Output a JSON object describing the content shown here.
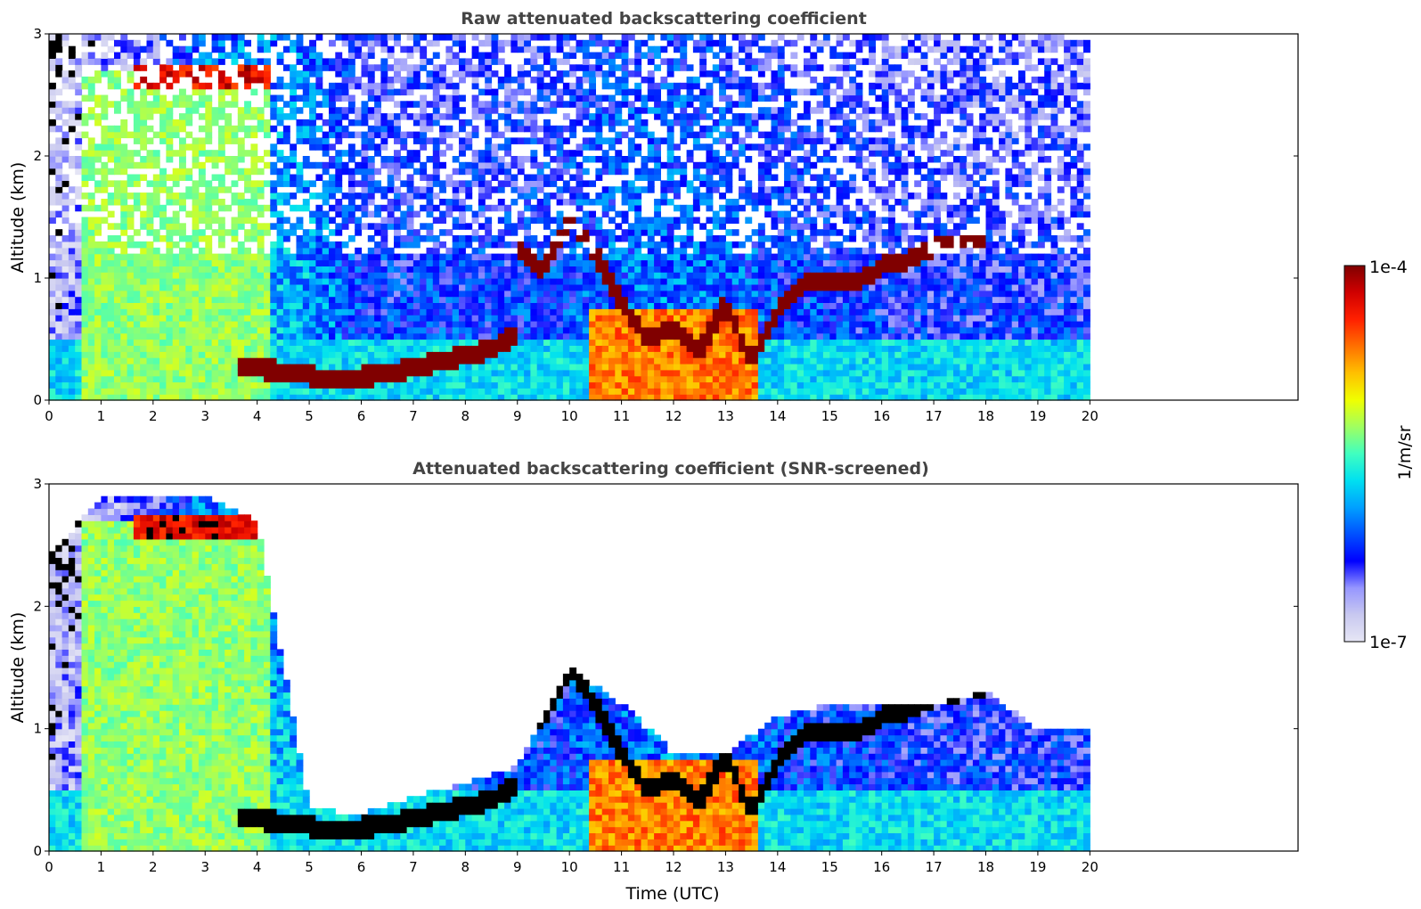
{
  "chart_data": [
    {
      "type": "heatmap",
      "title": "Raw attenuated backscattering coefficient",
      "xlabel": "",
      "ylabel": "Altitude (km)",
      "xlim": [
        0,
        24
      ],
      "ylim": [
        0,
        3
      ],
      "x_ticks": [
        "0",
        "1",
        "2",
        "3",
        "4",
        "5",
        "6",
        "7",
        "8",
        "9",
        "10",
        "11",
        "12",
        "13",
        "14",
        "15",
        "16",
        "17",
        "18",
        "19",
        "20"
      ],
      "y_ticks": [
        "0",
        "1",
        "2",
        "3"
      ],
      "data_extent_x": [
        0,
        20
      ],
      "screened": false,
      "background_level": [
        0.0,
        0.1,
        0.18,
        0.4,
        0.4,
        0.38,
        0.22,
        0.22,
        0.22,
        0.22,
        0.25,
        0.3,
        0.32,
        0.3,
        0.25,
        0.22,
        0.2,
        0.18,
        0.18,
        0.18,
        0.18
      ],
      "layers": [
        {
          "name": "aerosol-column",
          "x": [
            0.6,
            4.2
          ],
          "top_km": 2.7,
          "level": 0.62
        },
        {
          "name": "cloud-high",
          "x": [
            1.6,
            4.2
          ],
          "base_km": 2.55,
          "top_km": 2.75,
          "level": 1.0
        },
        {
          "name": "cloud-low",
          "points": [
            [
              3.6,
              0.28
            ],
            [
              4.5,
              0.24
            ],
            [
              5.5,
              0.17
            ],
            [
              6.5,
              0.22
            ],
            [
              7.5,
              0.32
            ],
            [
              8.5,
              0.42
            ],
            [
              9.0,
              0.55
            ]
          ],
          "level": 1.0
        },
        {
          "name": "cloud-mid",
          "points": [
            [
              9.0,
              1.25
            ],
            [
              9.5,
              1.05
            ],
            [
              10.0,
              1.5
            ],
            [
              10.5,
              1.2
            ],
            [
              11.0,
              0.8
            ],
            [
              11.5,
              0.5
            ],
            [
              12.0,
              0.6
            ],
            [
              12.5,
              0.4
            ],
            [
              13.0,
              0.8
            ],
            [
              13.5,
              0.3
            ],
            [
              14.0,
              0.75
            ],
            [
              14.5,
              0.95
            ],
            [
              15.0,
              1.0
            ],
            [
              15.5,
              0.95
            ],
            [
              16.0,
              1.1
            ],
            [
              16.5,
              1.15
            ],
            [
              17.0,
              1.25
            ],
            [
              17.5,
              1.3
            ],
            [
              18.0,
              1.35
            ]
          ],
          "level": 1.0
        },
        {
          "name": "convective-core",
          "x": [
            10.4,
            13.6
          ],
          "top_km": 0.75,
          "level": 0.85
        }
      ]
    },
    {
      "type": "heatmap",
      "title": "Attenuated backscattering coefficient (SNR-screened)",
      "xlabel": "Time (UTC)",
      "ylabel": "Altitude (km)",
      "xlim": [
        0,
        24
      ],
      "ylim": [
        0,
        3
      ],
      "x_ticks": [
        "0",
        "1",
        "2",
        "3",
        "4",
        "5",
        "6",
        "7",
        "8",
        "9",
        "10",
        "11",
        "12",
        "13",
        "14",
        "15",
        "16",
        "17",
        "18",
        "19",
        "20"
      ],
      "y_ticks": [
        "0",
        "1",
        "2",
        "3"
      ],
      "data_extent_x": [
        0,
        20
      ],
      "screened": true,
      "screen_top_km": [
        2.4,
        2.9,
        2.9,
        2.9,
        2.7,
        0.35,
        0.3,
        0.45,
        0.55,
        0.7,
        1.5,
        1.2,
        0.8,
        0.8,
        1.1,
        1.2,
        1.2,
        1.2,
        1.3,
        1.0,
        1.0
      ],
      "background_level": [
        0.0,
        0.1,
        0.18,
        0.4,
        0.4,
        0.38,
        0.22,
        0.22,
        0.22,
        0.22,
        0.25,
        0.3,
        0.32,
        0.3,
        0.25,
        0.22,
        0.2,
        0.18,
        0.18,
        0.18,
        0.18
      ]
    }
  ],
  "colorbar": {
    "label": "1/m/sr",
    "max_label": "1e-4",
    "min_label": "1e-7",
    "colormap": [
      "#e6e6f5",
      "#c8c8f0",
      "#9696ff",
      "#0000ff",
      "#0050ff",
      "#00a0ff",
      "#00e0f0",
      "#40ffc0",
      "#a0ff60",
      "#f0ff00",
      "#ffc000",
      "#ff7000",
      "#ff2000",
      "#d00000",
      "#800000"
    ]
  }
}
